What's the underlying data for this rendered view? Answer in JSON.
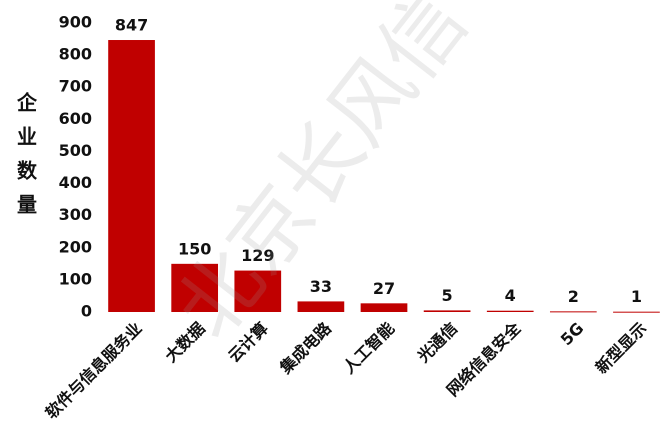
{
  "chart_data": {
    "type": "bar",
    "y_label": "企业数量",
    "watermark": "北京长风信",
    "categories": [
      "软件与信息服务业",
      "大数据",
      "云计算",
      "集成电路",
      "人工智能",
      "光通信",
      "网络信息安全",
      "5G",
      "新型显示"
    ],
    "values": [
      847,
      150,
      129,
      33,
      27,
      5,
      4,
      2,
      1
    ],
    "color": "#c00000",
    "ylim": [
      0,
      900
    ],
    "yticks": [
      0,
      100,
      200,
      300,
      400,
      500,
      600,
      700,
      800,
      900
    ],
    "grid": false
  }
}
